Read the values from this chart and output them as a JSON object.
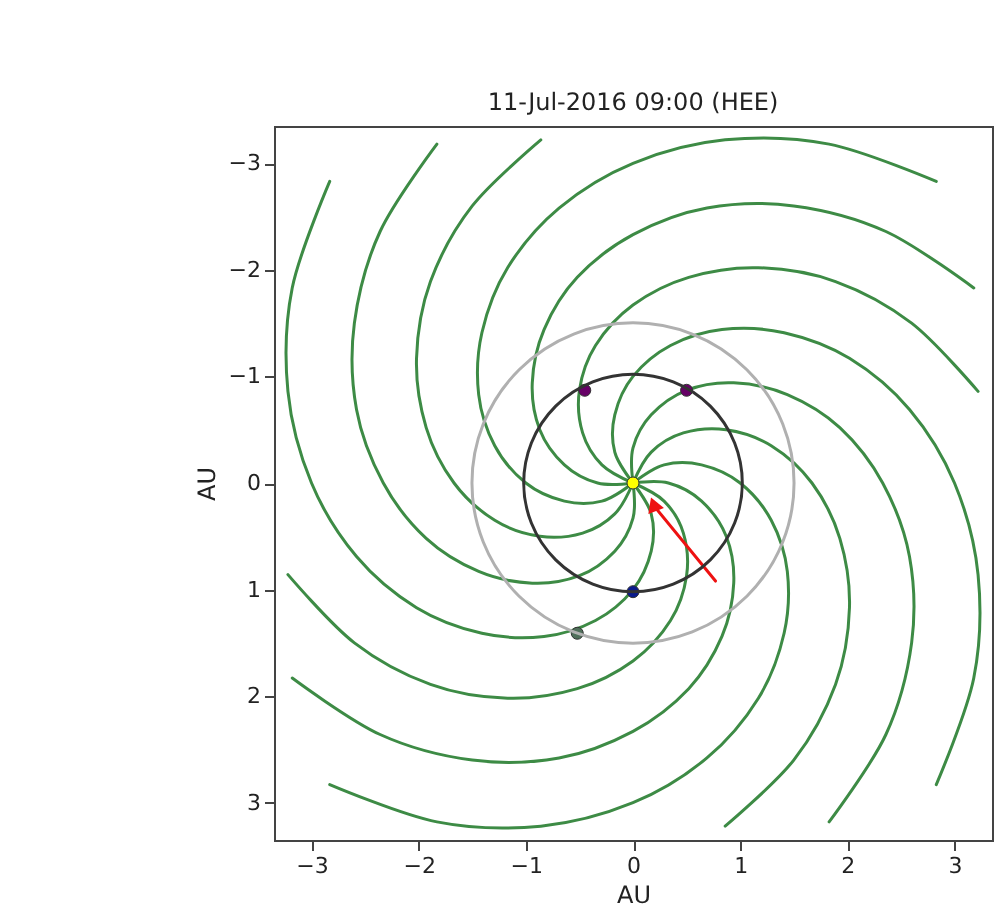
{
  "chart_data": {
    "type": "line",
    "title": "11-Jul-2016 09:00 (HEE)",
    "xlabel": "AU",
    "ylabel": "AU",
    "xlim": [
      -3.35,
      3.35
    ],
    "ylim": [
      3.35,
      -3.35
    ],
    "xticks": [
      -3,
      -2,
      -1,
      0,
      1,
      2,
      3
    ],
    "yticks": [
      -3,
      -2,
      -1,
      0,
      1,
      2,
      3
    ],
    "grid": false,
    "series": [
      {
        "color": "#3d8b45",
        "x": [
          0,
          0.29,
          0.47,
          0.5,
          0.35,
          0,
          -0.52,
          -1.17,
          -1.89,
          -2.6,
          -3.22
        ],
        "values": [
          0,
          0.17,
          0.47,
          0.87,
          1.29,
          1.67,
          1.93,
          2.02,
          1.89,
          1.5,
          0.86
        ]
      },
      {
        "color": "#3d8b45",
        "x": [
          0,
          0.17,
          0.17,
          0,
          -0.35,
          -0.83,
          -1.41,
          -2.02,
          -2.58,
          -3,
          -3.22,
          -3.18,
          -2.83
        ],
        "values": [
          0,
          0.29,
          0.64,
          1,
          1.29,
          1.44,
          1.41,
          1.17,
          0.69,
          0,
          -0.86,
          -1.83,
          -2.83
        ]
      },
      {
        "color": "#3d8b45",
        "x": [
          0,
          0,
          -0.17,
          -0.5,
          -0.94,
          -1.44,
          -1.93,
          -2.33,
          -2.58,
          -2.6,
          -2.36,
          -1.83
        ],
        "values": [
          0,
          0.33,
          0.64,
          0.87,
          0.94,
          0.83,
          0.52,
          0,
          -0.69,
          -1.5,
          -2.36,
          -3.18
        ]
      },
      {
        "color": "#3d8b45",
        "x": [
          0,
          -0.17,
          -0.47,
          -0.87,
          -1.29,
          -1.67,
          -1.93,
          -2.02,
          -1.89,
          -1.5,
          -0.86
        ],
        "values": [
          0,
          0.29,
          0.47,
          0.5,
          0.35,
          0,
          -0.52,
          -1.17,
          -1.89,
          -2.6,
          -3.22
        ]
      },
      {
        "color": "#3d8b45",
        "x": [
          0,
          -0.29,
          -0.64,
          -1,
          -1.29,
          -1.44,
          -1.41,
          -1.17,
          -0.69,
          0,
          0.86,
          1.83,
          2.83
        ],
        "values": [
          0,
          0.17,
          0.17,
          0,
          -0.35,
          -0.83,
          -1.41,
          -2.02,
          -2.58,
          -3,
          -3.22,
          -3.18,
          -2.83
        ]
      },
      {
        "color": "#3d8b45",
        "x": [
          0,
          -0.33,
          -0.64,
          -0.87,
          -0.94,
          -0.83,
          -0.52,
          0,
          0.69,
          1.5,
          2.36,
          3.18
        ],
        "values": [
          0,
          0,
          -0.17,
          -0.5,
          -0.94,
          -1.44,
          -1.93,
          -2.33,
          -2.58,
          -2.6,
          -2.36,
          -1.83
        ]
      },
      {
        "color": "#3d8b45",
        "x": [
          0,
          -0.29,
          -0.47,
          -0.5,
          -0.35,
          0,
          0.52,
          1.17,
          1.89,
          2.6,
          3.22
        ],
        "values": [
          0,
          -0.17,
          -0.47,
          -0.87,
          -1.29,
          -1.67,
          -1.93,
          -2.02,
          -1.89,
          -1.5,
          -0.86
        ]
      },
      {
        "color": "#3d8b45",
        "x": [
          0,
          -0.17,
          -0.17,
          0,
          0.35,
          0.83,
          1.41,
          2.02,
          2.58,
          3,
          3.22,
          3.18,
          2.83
        ],
        "values": [
          0,
          -0.29,
          -0.64,
          -1,
          -1.29,
          -1.44,
          -1.41,
          -1.17,
          -0.69,
          0,
          0.86,
          1.83,
          2.83
        ]
      },
      {
        "color": "#3d8b45",
        "x": [
          0,
          0,
          0.17,
          0.5,
          0.94,
          1.44,
          1.93,
          2.33,
          2.58,
          2.6,
          2.36,
          1.83
        ],
        "values": [
          0,
          -0.33,
          -0.64,
          -0.87,
          -0.94,
          -0.83,
          -0.52,
          0,
          0.69,
          1.5,
          2.36,
          3.18
        ]
      },
      {
        "color": "#3d8b45",
        "x": [
          0,
          0.17,
          0.47,
          0.87,
          1.29,
          1.67,
          1.93,
          2.02,
          1.89,
          1.5,
          0.86
        ],
        "values": [
          0,
          -0.29,
          -0.47,
          -0.5,
          -0.35,
          0,
          0.52,
          1.17,
          1.89,
          2.6,
          3.22
        ]
      },
      {
        "color": "#3d8b45",
        "x": [
          0,
          0.29,
          0.64,
          1,
          1.29,
          1.44,
          1.41,
          1.17,
          0.69,
          0,
          -0.86,
          -1.83,
          -2.83
        ],
        "values": [
          0,
          -0.17,
          -0.17,
          0,
          0.35,
          0.83,
          1.41,
          2.02,
          2.58,
          3,
          3.22,
          3.18,
          2.83
        ]
      },
      {
        "color": "#3d8b45",
        "x": [
          0,
          0.33,
          0.64,
          0.87,
          0.94,
          0.83,
          0.52,
          0,
          -0.69,
          -1.5,
          -2.36,
          -3.18
        ],
        "values": [
          0,
          0,
          0.17,
          0.5,
          0.94,
          1.44,
          1.93,
          2.33,
          2.58,
          2.6,
          2.36,
          1.83
        ]
      },
      {
        "color": "#ee1111",
        "marker": "triangle",
        "x": [
          0.77,
          0.2
        ],
        "values": [
          0.92,
          0.22
        ]
      },
      {
        "type": "scatter",
        "color": "#ffff00",
        "x": [
          0
        ],
        "values": [
          0
        ]
      },
      {
        "type": "scatter",
        "color": "#0a1a8c",
        "x": [
          0
        ],
        "values": [
          1.02
        ]
      },
      {
        "type": "scatter",
        "color": "#660066",
        "x": [
          -0.45,
          0.5
        ],
        "values": [
          -0.87,
          -0.87
        ]
      },
      {
        "type": "scatter",
        "color": "#4f6f5a",
        "x": [
          -0.52
        ],
        "values": [
          1.41
        ]
      }
    ]
  }
}
